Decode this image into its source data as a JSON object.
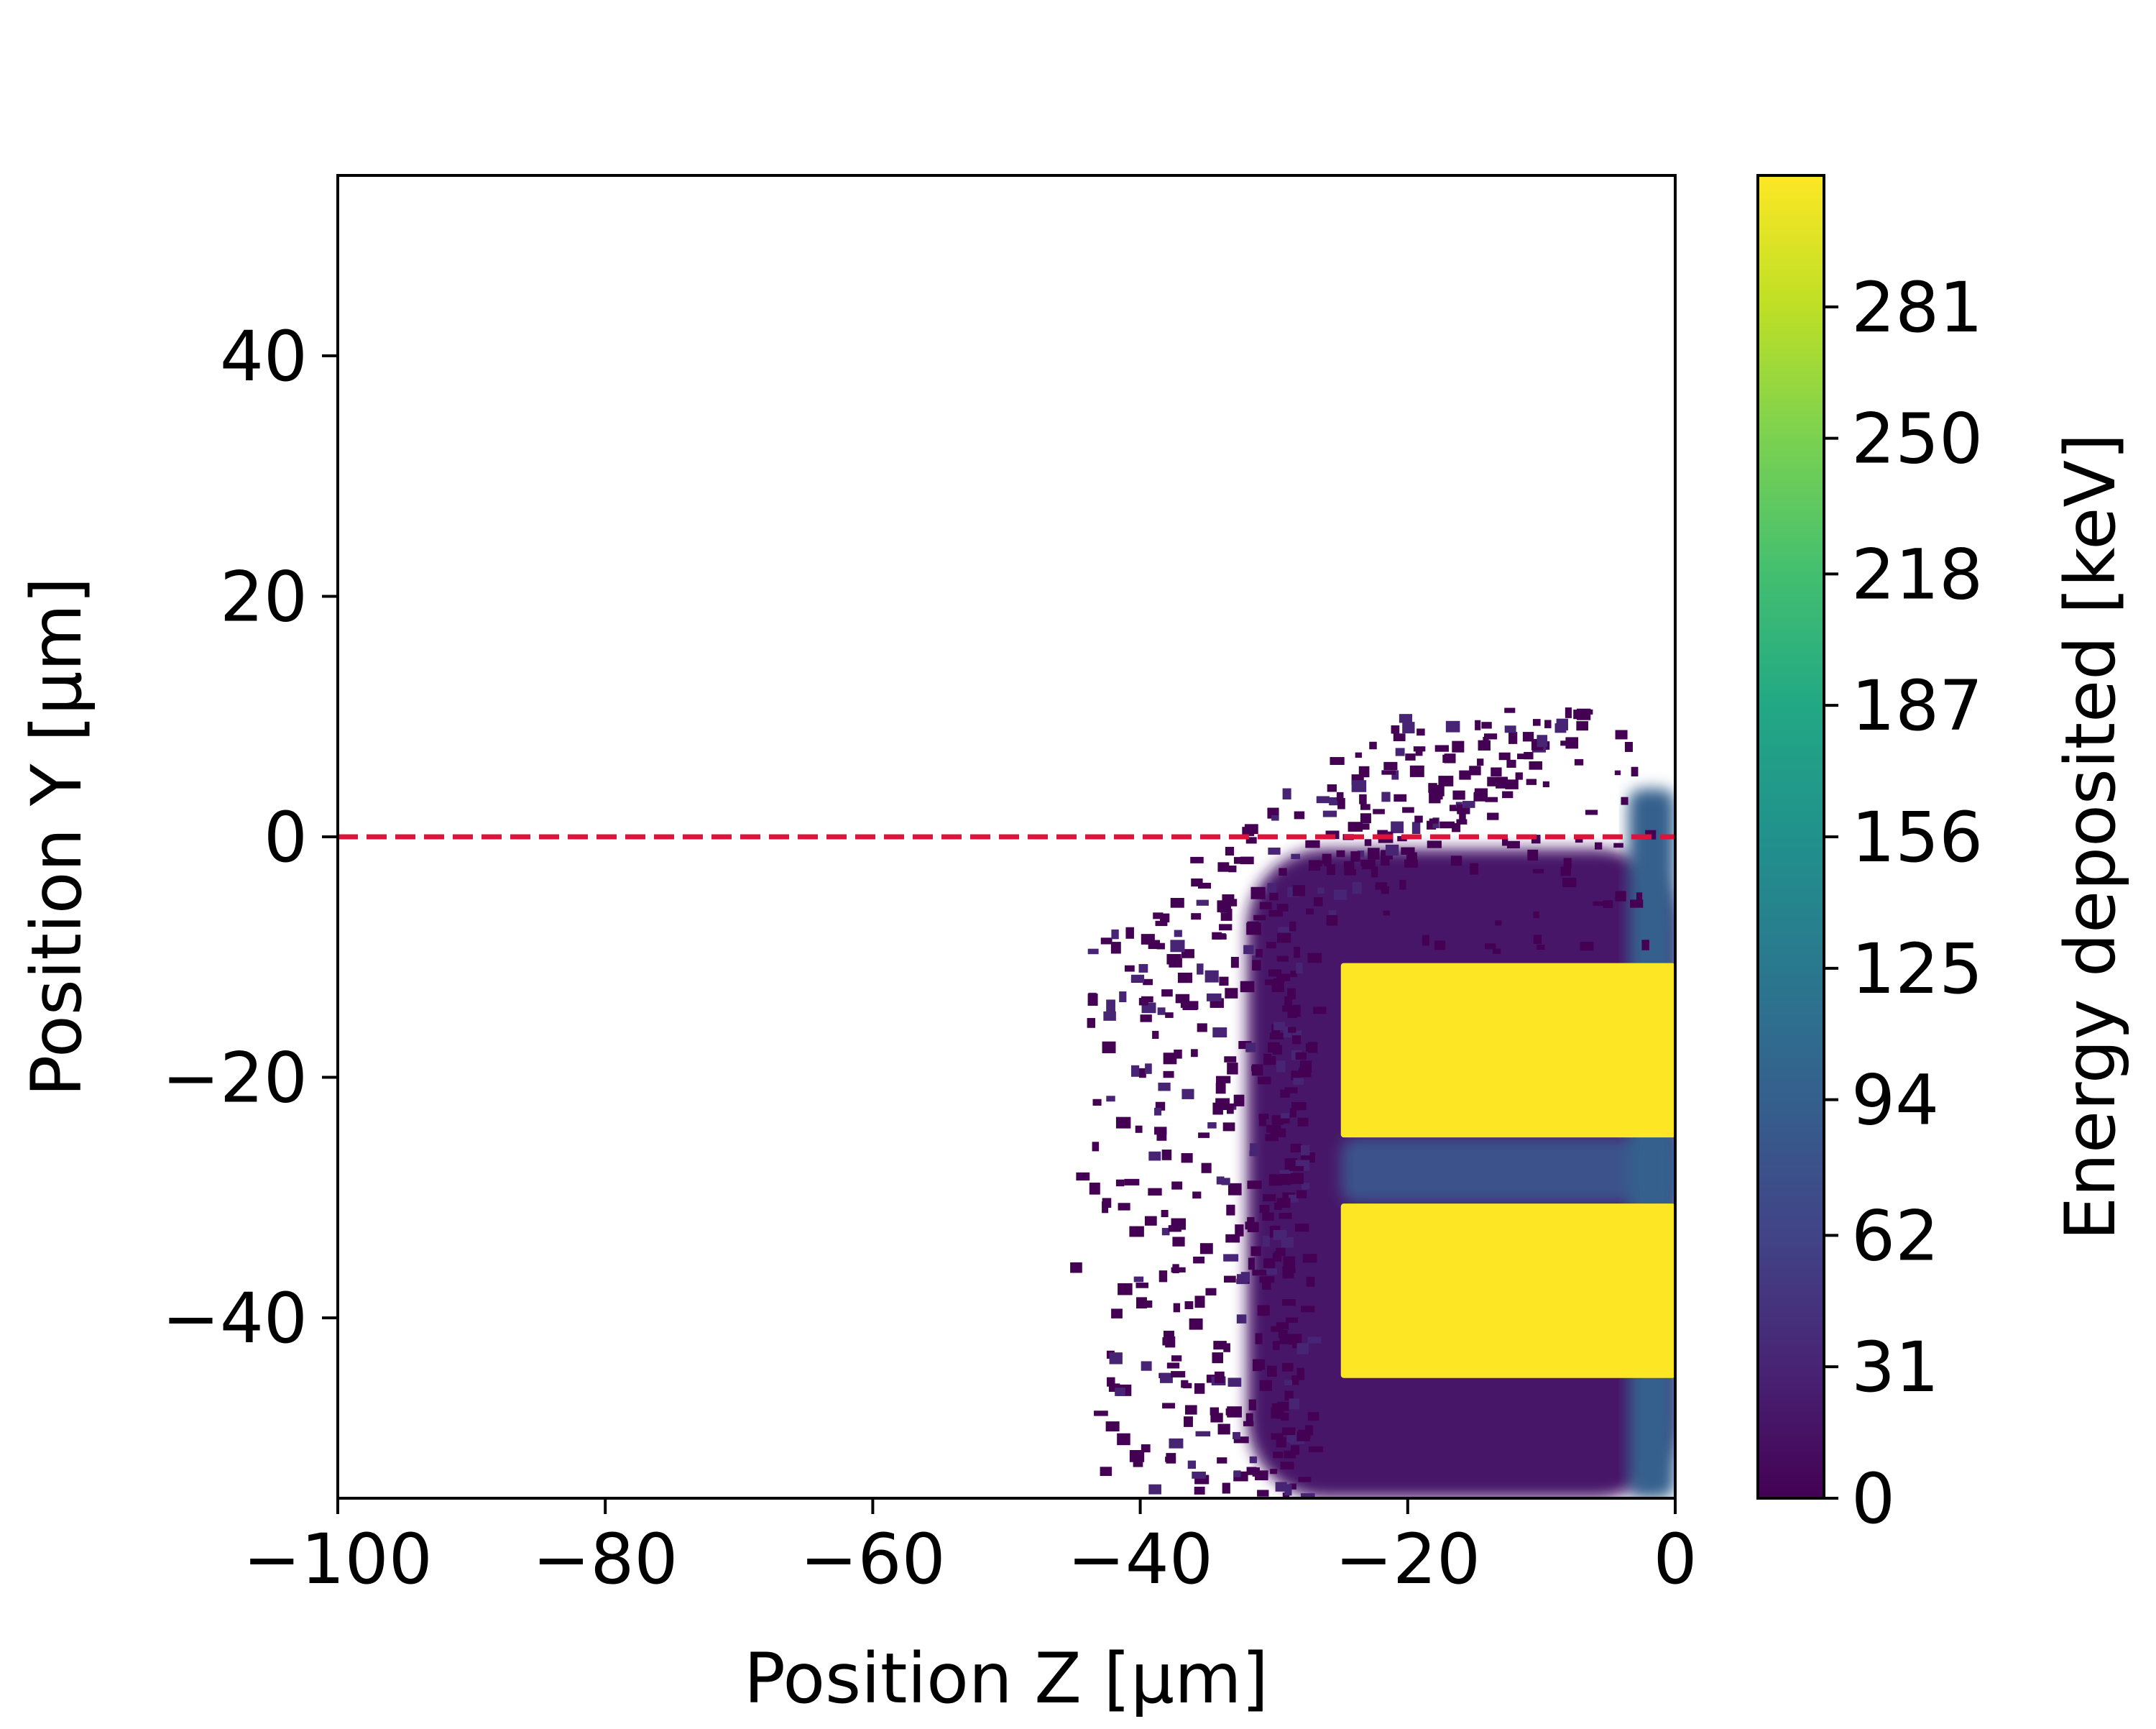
{
  "chart_data": {
    "type": "heatmap",
    "title": "",
    "xlabel": "Position Z [μm]",
    "ylabel": "Position Y [μm]",
    "xlim": [
      -100,
      0
    ],
    "ylim": [
      -55,
      55
    ],
    "xticks": [
      -100,
      -80,
      -60,
      -40,
      -20,
      0
    ],
    "yticks": [
      -40,
      -20,
      0,
      20,
      40
    ],
    "xtick_labels": [
      "−100",
      "−80",
      "−60",
      "−40",
      "−20",
      "0"
    ],
    "ytick_labels": [
      "−40",
      "−20",
      "0",
      "20",
      "40"
    ],
    "grid": false,
    "colormap": "viridis",
    "colorbar": {
      "label": "Energy deposited [keV]",
      "range": [
        0,
        312
      ],
      "ticks": [
        0,
        31,
        62,
        94,
        125,
        156,
        187,
        218,
        250,
        281
      ],
      "tick_labels": [
        "0",
        "31",
        "62",
        "94",
        "125",
        "156",
        "187",
        "218",
        "250",
        "281"
      ]
    },
    "regions": [
      {
        "name": "upper saturated band",
        "z": [
          -25,
          0
        ],
        "y": [
          -25,
          -10.5
        ],
        "energy_keV": 312
      },
      {
        "name": "lower saturated band",
        "z": [
          -25,
          0
        ],
        "y": [
          -45,
          -30.5
        ],
        "energy_keV": 312
      },
      {
        "name": "halo between bands",
        "z": [
          -25,
          0
        ],
        "y": [
          -30.5,
          -25
        ],
        "energy_keV": 80
      },
      {
        "name": "right edge column",
        "z": [
          -3.5,
          0
        ],
        "y": [
          -55,
          4
        ],
        "energy_keV": 95
      },
      {
        "name": "outer halo",
        "z": [
          -32,
          0
        ],
        "y": [
          -55,
          -1
        ],
        "energy_keV": 20
      }
    ],
    "annotations": [
      {
        "type": "hline",
        "y": 0,
        "style": "dashed",
        "color": "#dc143c"
      }
    ],
    "colors": {
      "saturated": "#fde725",
      "high": "#35b779",
      "mid": "#21918c",
      "low": "#3b528b",
      "background_low": "#440154",
      "reference_line": "#dc143c"
    }
  }
}
